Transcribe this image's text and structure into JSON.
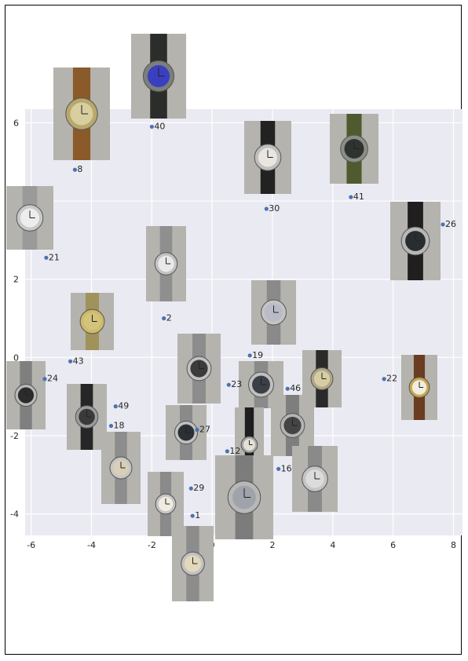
{
  "chart_data": {
    "type": "scatter",
    "title": "",
    "xlabel": "",
    "ylabel": "",
    "xlim": [
      -6.2,
      8.3
    ],
    "ylim": [
      -4.55,
      6.35
    ],
    "xticks": [
      "-6",
      "-4",
      "-2",
      "0",
      "2",
      "4",
      "6",
      "8"
    ],
    "yticks": [
      "-4",
      "-2",
      "0",
      "2",
      "4",
      "6"
    ],
    "xtick_values": [
      -6,
      -4,
      -2,
      0,
      2,
      4,
      6,
      8
    ],
    "ytick_values": [
      -4,
      -2,
      0,
      2,
      4,
      6
    ],
    "grid": true,
    "background": "#eaeaf2",
    "point_color": "#4c72b0",
    "points": [
      {
        "label": "40",
        "x": -2.0,
        "y": 5.9,
        "icon": "watch-blue-dial-black-strap"
      },
      {
        "label": "8",
        "x": -4.55,
        "y": 4.8,
        "icon": "pocket-watch-gold"
      },
      {
        "label": "41",
        "x": 4.6,
        "y": 4.1,
        "icon": "watch-olive-strap"
      },
      {
        "label": "30",
        "x": 1.8,
        "y": 3.8,
        "icon": "watch-chronograph-black-strap"
      },
      {
        "label": "26",
        "x": 7.65,
        "y": 3.4,
        "icon": "watch-black-dial-silver"
      },
      {
        "label": "21",
        "x": -5.5,
        "y": 2.55,
        "icon": "watch-chronograph-steel-bracelet"
      },
      {
        "label": "2",
        "x": -1.6,
        "y": 1.0,
        "icon": "watch-white-dial-steel"
      },
      {
        "label": "19",
        "x": 1.25,
        "y": 0.05,
        "icon": "watch-chronograph-steel"
      },
      {
        "label": "43",
        "x": -4.7,
        "y": -0.1,
        "icon": "watch-gold-two-tone"
      },
      {
        "label": "22",
        "x": 5.7,
        "y": -0.55,
        "icon": "watch-gold-brown-strap"
      },
      {
        "label": "24",
        "x": -5.55,
        "y": -0.55,
        "icon": "watch-steel-slotted"
      },
      {
        "label": "23",
        "x": 0.55,
        "y": -0.7,
        "icon": "watch-digital-steel"
      },
      {
        "label": "46",
        "x": 2.5,
        "y": -0.8,
        "icon": "watch-gold-dial-black-strap"
      },
      {
        "label": "49",
        "x": -3.2,
        "y": -1.25,
        "icon": "watch-square-black-strap"
      },
      {
        "label": "18",
        "x": -3.35,
        "y": -1.75,
        "icon": "watch-square-gold-steel"
      },
      {
        "label": "27",
        "x": -0.5,
        "y": -1.85,
        "icon": "watch-black-dial-steel"
      },
      {
        "label": "12",
        "x": 0.5,
        "y": -2.4,
        "icon": "watch-rectangular-black-strap"
      },
      {
        "label": "16",
        "x": 2.2,
        "y": -2.85,
        "icon": "watch-digital-bracelet"
      },
      {
        "label": "29",
        "x": -0.7,
        "y": -3.35,
        "icon": "watch-rectangular-steel"
      },
      {
        "label": "1",
        "x": -0.65,
        "y": -4.05,
        "icon": "watch-tank-steel"
      }
    ],
    "thumbnails": [
      {
        "icon": "watch-blue-dial-black-strap"
      },
      {
        "icon": "pocket-watch-gold"
      },
      {
        "icon": "watch-chronograph-black-strap"
      },
      {
        "icon": "watch-olive-strap"
      },
      {
        "icon": "watch-chronograph-steel-bracelet"
      },
      {
        "icon": "watch-white-dial-steel"
      },
      {
        "icon": "watch-black-dial-silver"
      },
      {
        "icon": "watch-chronograph-steel"
      },
      {
        "icon": "watch-gold-two-tone"
      },
      {
        "icon": "watch-digital-steel"
      },
      {
        "icon": "watch-gold-dial-black-strap"
      },
      {
        "icon": "watch-gold-brown-strap"
      },
      {
        "icon": "watch-steel-slotted"
      },
      {
        "icon": "watch-square-black-strap"
      },
      {
        "icon": "watch-black-dial-steel"
      },
      {
        "icon": "watch-black-dial-steel-2"
      },
      {
        "icon": "watch-digital-bracelet"
      },
      {
        "icon": "watch-rectangular-black-strap"
      },
      {
        "icon": "watch-square-gold-steel"
      },
      {
        "icon": "watch-chronograph-steel-2"
      },
      {
        "icon": "watch-rectangular-steel"
      },
      {
        "icon": "watch-steel-silver-dial"
      },
      {
        "icon": "watch-tank-steel"
      }
    ]
  }
}
